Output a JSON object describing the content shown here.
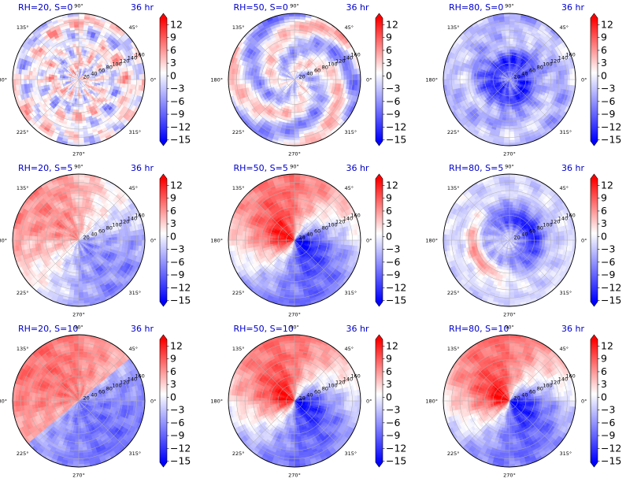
{
  "figure": {
    "rows": 3,
    "cols": 3,
    "colormap": "bwr",
    "colors": {
      "negative": "#0000ff",
      "zero": "#ffffff",
      "positive": "#ff0000",
      "title": "#0000cc"
    }
  },
  "chart_data": [
    {
      "type": "heatmap",
      "projection": "polar",
      "title_left": "RH=20, S=0",
      "title_right": "36 hr",
      "rh": 20,
      "s": 0,
      "pattern": "noisy-mixed",
      "angle_ticks": [
        "0°",
        "45°",
        "90°",
        "135°",
        "180°",
        "225°",
        "270°",
        "315°"
      ],
      "radial_ticks": [
        "20",
        "40",
        "60",
        "80",
        "100",
        "120",
        "140",
        "160"
      ],
      "colorbar": {
        "ticks": [
          "12",
          "9",
          "6",
          "3",
          "0",
          "−3",
          "−6",
          "−9",
          "−12",
          "−15"
        ],
        "range": [
          -15,
          12
        ],
        "extend": "both"
      }
    },
    {
      "type": "heatmap",
      "projection": "polar",
      "title_left": "RH=50, S=0",
      "title_right": "36 hr",
      "rh": 50,
      "s": 0,
      "pattern": "spiral-light",
      "angle_ticks": [
        "0°",
        "45°",
        "90°",
        "135°",
        "180°",
        "225°",
        "270°",
        "315°"
      ],
      "radial_ticks": [
        "20",
        "40",
        "60",
        "80",
        "100",
        "120",
        "140",
        "160"
      ],
      "colorbar": {
        "ticks": [
          "12",
          "9",
          "6",
          "3",
          "0",
          "−3",
          "−6",
          "−9",
          "−12",
          "−15"
        ],
        "range": [
          -15,
          12
        ],
        "extend": "both"
      }
    },
    {
      "type": "heatmap",
      "projection": "polar",
      "title_left": "RH=80, S=0",
      "title_right": "36 hr",
      "rh": 80,
      "s": 0,
      "pattern": "blue-ring",
      "angle_ticks": [
        "0°",
        "45°",
        "90°",
        "135°",
        "180°",
        "225°",
        "270°",
        "315°"
      ],
      "radial_ticks": [
        "20",
        "40",
        "60",
        "80",
        "100",
        "120",
        "140",
        "160"
      ],
      "colorbar": {
        "ticks": [
          "12",
          "9",
          "6",
          "3",
          "0",
          "−3",
          "−6",
          "−9",
          "−12",
          "−15"
        ],
        "range": [
          -15,
          12
        ],
        "extend": "both"
      }
    },
    {
      "type": "heatmap",
      "projection": "polar",
      "title_left": "RH=20, S=5",
      "title_right": "36 hr",
      "rh": 20,
      "s": 5,
      "pattern": "dipole-diffuse",
      "angle_ticks": [
        "0°",
        "45°",
        "90°",
        "135°",
        "180°",
        "225°",
        "270°",
        "315°"
      ],
      "radial_ticks": [
        "20",
        "40",
        "60",
        "80",
        "100",
        "120",
        "140",
        "160"
      ],
      "colorbar": {
        "ticks": [
          "12",
          "9",
          "6",
          "3",
          "0",
          "−3",
          "−6",
          "−9",
          "−12",
          "−15"
        ],
        "range": [
          -15,
          12
        ],
        "extend": "both"
      }
    },
    {
      "type": "heatmap",
      "projection": "polar",
      "title_left": "RH=50, S=5",
      "title_right": "36 hr",
      "rh": 50,
      "s": 5,
      "pattern": "dipole-strong",
      "angle_ticks": [
        "0°",
        "45°",
        "90°",
        "135°",
        "180°",
        "225°",
        "270°",
        "315°"
      ],
      "radial_ticks": [
        "20",
        "40",
        "60",
        "80",
        "100",
        "120",
        "140",
        "160"
      ],
      "colorbar": {
        "ticks": [
          "12",
          "9",
          "6",
          "3",
          "0",
          "−3",
          "−6",
          "−9",
          "−12",
          "−15"
        ],
        "range": [
          -15,
          12
        ],
        "extend": "both"
      }
    },
    {
      "type": "heatmap",
      "projection": "polar",
      "title_left": "RH=80, S=5",
      "title_right": "36 hr",
      "rh": 80,
      "s": 5,
      "pattern": "blue-band-red-arc",
      "angle_ticks": [
        "0°",
        "45°",
        "90°",
        "135°",
        "180°",
        "225°",
        "270°",
        "315°"
      ],
      "radial_ticks": [
        "20",
        "40",
        "60",
        "80",
        "100",
        "120",
        "140",
        "160"
      ],
      "colorbar": {
        "ticks": [
          "12",
          "9",
          "6",
          "3",
          "0",
          "−3",
          "−6",
          "−9",
          "−12",
          "−15"
        ],
        "range": [
          -15,
          12
        ],
        "extend": "both"
      }
    },
    {
      "type": "heatmap",
      "projection": "polar",
      "title_left": "RH=20, S=10",
      "title_right": "36 hr",
      "rh": 20,
      "s": 10,
      "pattern": "dipole-halves",
      "angle_ticks": [
        "0°",
        "45°",
        "90°",
        "135°",
        "180°",
        "225°",
        "270°",
        "315°"
      ],
      "radial_ticks": [
        "20",
        "40",
        "60",
        "80",
        "100",
        "120",
        "140",
        "160"
      ],
      "colorbar": {
        "ticks": [
          "12",
          "9",
          "6",
          "3",
          "0",
          "−3",
          "−6",
          "−9",
          "−12",
          "−15"
        ],
        "range": [
          -15,
          12
        ],
        "extend": "both"
      }
    },
    {
      "type": "heatmap",
      "projection": "polar",
      "title_left": "RH=50, S=10",
      "title_right": "36 hr",
      "rh": 50,
      "s": 10,
      "pattern": "dipole-strong",
      "angle_ticks": [
        "0°",
        "45°",
        "90°",
        "135°",
        "180°",
        "225°",
        "270°",
        "315°"
      ],
      "radial_ticks": [
        "20",
        "40",
        "60",
        "80",
        "100",
        "120",
        "140",
        "160"
      ],
      "colorbar": {
        "ticks": [
          "12",
          "9",
          "6",
          "3",
          "0",
          "−3",
          "−6",
          "−9",
          "−12",
          "−15"
        ],
        "range": [
          -15,
          12
        ],
        "extend": "both"
      }
    },
    {
      "type": "heatmap",
      "projection": "polar",
      "title_left": "RH=80, S=10",
      "title_right": "36 hr",
      "rh": 80,
      "s": 10,
      "pattern": "dipole-strong",
      "angle_ticks": [
        "0°",
        "45°",
        "90°",
        "135°",
        "180°",
        "225°",
        "270°",
        "315°"
      ],
      "radial_ticks": [
        "20",
        "40",
        "60",
        "80",
        "100",
        "120",
        "140",
        "160"
      ],
      "colorbar": {
        "ticks": [
          "12",
          "9",
          "6",
          "3",
          "0",
          "−3",
          "−6",
          "−9",
          "−12",
          "−15"
        ],
        "range": [
          -15,
          12
        ],
        "extend": "both"
      }
    }
  ]
}
